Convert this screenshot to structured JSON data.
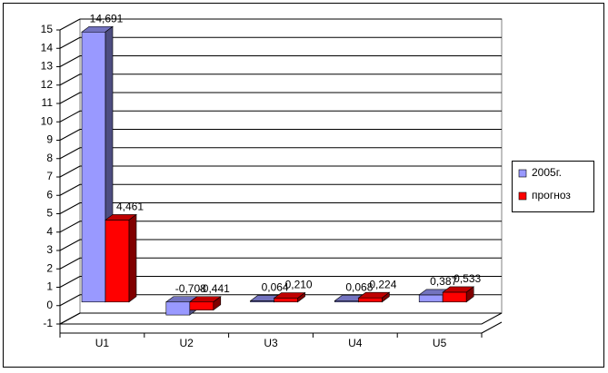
{
  "chart_data": {
    "type": "bar3d",
    "categories": [
      "U1",
      "U2",
      "U3",
      "U4",
      "U5"
    ],
    "series": [
      {
        "name": "2005г.",
        "color": "#9999ff",
        "values": [
          14.691,
          -0.708,
          0.064,
          0.068,
          0.387
        ],
        "value_labels": [
          "14,691",
          "-0,708",
          "0,064",
          "0,068",
          "0,387"
        ]
      },
      {
        "name": "прогноз",
        "color": "#ff0000",
        "values": [
          4.461,
          -0.441,
          0.21,
          0.224,
          0.533
        ],
        "value_labels": [
          "4,461",
          "-0,441",
          "0,210",
          "0,224",
          "0,533"
        ]
      }
    ],
    "ylim": [
      -1,
      15
    ],
    "yticks": [
      -1,
      0,
      1,
      2,
      3,
      4,
      5,
      6,
      7,
      8,
      9,
      10,
      11,
      12,
      13,
      14,
      15
    ],
    "grid": true,
    "legend": "right"
  }
}
